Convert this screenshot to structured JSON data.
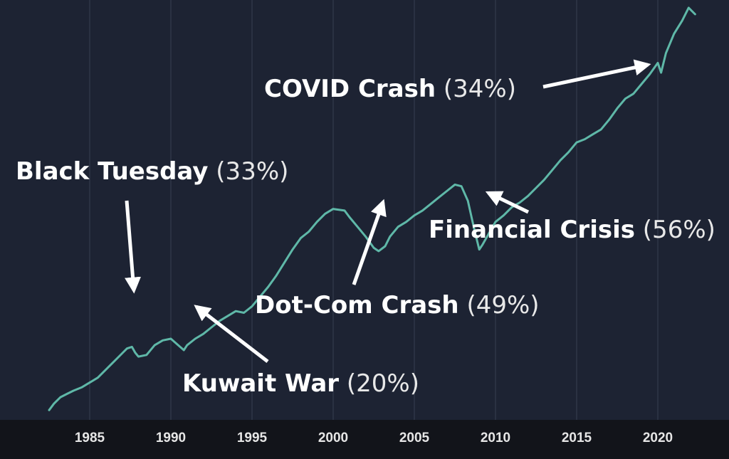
{
  "chart_data": {
    "type": "line",
    "title": "",
    "xlabel": "",
    "ylabel": "",
    "x_ticks": [
      "1985",
      "1990",
      "1995",
      "2000",
      "2005",
      "2010",
      "2015",
      "2020"
    ],
    "grid": true,
    "line_color": "#5fb8a8",
    "background_color": "#1d2333",
    "series": [
      {
        "x": [
          1982.5,
          1982.8,
          1983.2,
          1983.6,
          1984.0,
          1984.5,
          1985.0,
          1985.5,
          1986.0,
          1986.5,
          1987.0,
          1987.3,
          1987.6,
          1987.8,
          1988.0,
          1988.5,
          1989.0,
          1989.5,
          1990.0,
          1990.4,
          1990.8,
          1991.0,
          1991.5,
          1992.0,
          1992.5,
          1993.0,
          1993.5,
          1994.0,
          1994.5,
          1995.0,
          1995.5,
          1996.0,
          1996.5,
          1997.0,
          1997.5,
          1998.0,
          1998.5,
          1999.0,
          1999.5,
          2000.0,
          2000.7,
          2001.0,
          2001.5,
          2002.0,
          2002.5,
          2002.8,
          2003.2,
          2003.5,
          2004.0,
          2004.5,
          2005.0,
          2005.5,
          2006.0,
          2006.5,
          2007.0,
          2007.5,
          2007.9,
          2008.3,
          2008.7,
          2009.0,
          2009.2,
          2009.6,
          2010.0,
          2010.5,
          2011.0,
          2011.5,
          2012.0,
          2012.5,
          2013.0,
          2013.5,
          2014.0,
          2014.5,
          2015.0,
          2015.5,
          2016.0,
          2016.5,
          2017.0,
          2017.5,
          2018.0,
          2018.5,
          2019.0,
          2019.5,
          2020.0,
          2020.2,
          2020.5,
          2021.0,
          2021.5,
          2021.9,
          2022.3
        ],
        "y": [
          12,
          20,
          28,
          32,
          36,
          40,
          46,
          52,
          62,
          72,
          82,
          88,
          90,
          83,
          78,
          80,
          92,
          98,
          100,
          93,
          86,
          92,
          100,
          106,
          114,
          122,
          128,
          134,
          132,
          140,
          152,
          164,
          178,
          194,
          210,
          224,
          232,
          244,
          254,
          260,
          258,
          250,
          238,
          226,
          212,
          208,
          214,
          226,
          238,
          244,
          252,
          258,
          266,
          274,
          282,
          290,
          288,
          270,
          234,
          210,
          216,
          230,
          244,
          252,
          262,
          268,
          276,
          286,
          296,
          308,
          320,
          330,
          342,
          346,
          352,
          358,
          370,
          384,
          396,
          402,
          414,
          426,
          440,
          428,
          452,
          476,
          492,
          508,
          500
        ]
      }
    ],
    "annotations": [
      {
        "name": "Black Tuesday",
        "pct": "(33%)"
      },
      {
        "name": "Kuwait War",
        "pct": "(20%)"
      },
      {
        "name": "Dot-Com Crash",
        "pct": "(49%)"
      },
      {
        "name": "Financial Crisis",
        "pct": "(56%)"
      },
      {
        "name": "COVID Crash",
        "pct": "(34%)"
      }
    ]
  }
}
